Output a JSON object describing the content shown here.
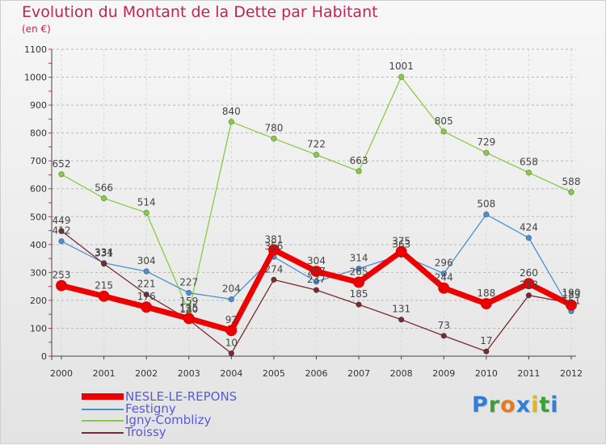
{
  "header": {
    "title": "Evolution du Montant de la Dette par Habitant",
    "unit": "(en €)"
  },
  "colors": {
    "title": "#c2235a",
    "legend_text": "#5a5ad6",
    "logo_letters": [
      "#2f7fd8",
      "#3aa13a",
      "#e77a1c",
      "#2f7fd8",
      "#e7b41c",
      "#3aa13a"
    ]
  },
  "logo": {
    "text": "Proxiti"
  },
  "chart_data": {
    "type": "line",
    "title": "Evolution du Montant de la Dette par Habitant",
    "subtitle": "(en €)",
    "xlabel": "",
    "ylabel": "",
    "ylim": [
      0,
      1100
    ],
    "yticks": [
      0,
      100,
      200,
      300,
      400,
      500,
      600,
      700,
      800,
      900,
      1000,
      1100
    ],
    "grid": "horizontal dashed",
    "legend_position": "bottom-left",
    "x": [
      "2000",
      "2001",
      "2002",
      "2003",
      "2004",
      "2005",
      "2006",
      "2007",
      "2008",
      "2009",
      "2010",
      "2011",
      "2012"
    ],
    "series": [
      {
        "name": "NESLE-LE-REPONS",
        "color": "#ee0000",
        "emphasis": true,
        "values": [
          253,
          215,
          176,
          135,
          92,
          381,
          304,
          265,
          375,
          244,
          188,
          260,
          183
        ],
        "labels": [
          "253",
          "215",
          "176",
          "135",
          "92",
          "381",
          "304",
          "265",
          "375",
          "244",
          "188",
          "260",
          "183"
        ]
      },
      {
        "name": "Festigny",
        "color": "#4a90d0",
        "values": [
          412,
          334,
          304,
          227,
          204,
          356,
          267,
          314,
          363,
          296,
          508,
          424,
          161
        ],
        "labels": [
          "412",
          "334",
          "304",
          "227",
          "204",
          "356",
          "267",
          "314",
          "363",
          "296",
          "508",
          "424",
          "161"
        ]
      },
      {
        "name": "Igny-Comblizy",
        "color": "#88cc44",
        "values": [
          652,
          566,
          514,
          159,
          840,
          780,
          722,
          663,
          1001,
          805,
          729,
          658,
          588
        ],
        "labels": [
          "652",
          "566",
          "514",
          "159",
          "840",
          "780",
          "722",
          "663",
          "1001",
          "805",
          "729",
          "658",
          "588"
        ]
      },
      {
        "name": "Troissy",
        "color": "#7a2a32",
        "values": [
          449,
          331,
          221,
          130,
          10,
          274,
          237,
          185,
          131,
          73,
          17,
          218,
          190
        ],
        "labels": [
          "449",
          "331",
          "221",
          "130",
          "10",
          "274",
          "237",
          "185",
          "131",
          "73",
          "17",
          "218",
          "190"
        ]
      }
    ]
  }
}
